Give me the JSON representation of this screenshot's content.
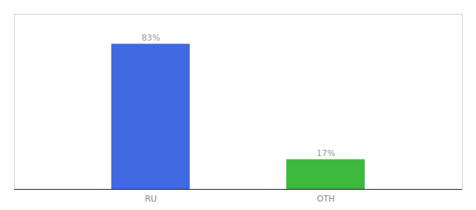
{
  "chart_data": {
    "type": "bar",
    "categories": [
      "RU",
      "OTH"
    ],
    "values": [
      83,
      17
    ],
    "value_labels": [
      "83%",
      "17%"
    ],
    "colors": [
      "#4169E1",
      "#3CB83C"
    ],
    "ylim": [
      0,
      100
    ],
    "data_labels": true,
    "tick_labels": "x"
  }
}
